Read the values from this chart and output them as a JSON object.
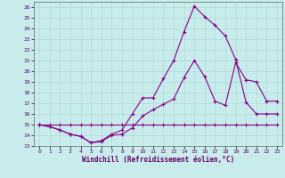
{
  "xlabel": "Windchill (Refroidissement éolien,°C)",
  "bg_color": "#c8ecec",
  "grid_color": "#b0d8d8",
  "line_color": "#880088",
  "xlim": [
    -0.5,
    23.5
  ],
  "ylim": [
    13,
    26.5
  ],
  "yticks": [
    13,
    14,
    15,
    16,
    17,
    18,
    19,
    20,
    21,
    22,
    23,
    24,
    25,
    26
  ],
  "xticks": [
    0,
    1,
    2,
    3,
    4,
    5,
    6,
    7,
    8,
    9,
    10,
    11,
    12,
    13,
    14,
    15,
    16,
    17,
    18,
    19,
    20,
    21,
    22,
    23
  ],
  "line1_x": [
    0,
    1,
    2,
    3,
    4,
    5,
    6,
    7,
    8,
    9,
    10,
    11,
    12,
    13,
    14,
    15,
    16,
    17,
    18,
    19,
    20,
    21,
    22,
    23
  ],
  "line1_y": [
    15.0,
    14.8,
    14.5,
    14.1,
    13.9,
    13.3,
    13.4,
    14.0,
    14.1,
    14.7,
    15.8,
    16.4,
    16.9,
    17.4,
    19.4,
    21.0,
    19.5,
    17.2,
    16.8,
    20.8,
    19.2,
    19.0,
    17.2,
    17.2
  ],
  "line2_x": [
    0,
    1,
    2,
    3,
    4,
    5,
    6,
    7,
    8,
    9,
    10,
    11,
    12,
    13,
    14,
    15,
    16,
    17,
    18,
    19,
    20,
    21,
    22,
    23
  ],
  "line2_y": [
    15.0,
    15.0,
    15.0,
    15.0,
    15.0,
    15.0,
    15.0,
    15.0,
    15.0,
    15.0,
    15.0,
    15.0,
    15.0,
    15.0,
    15.0,
    15.0,
    15.0,
    15.0,
    15.0,
    15.0,
    15.0,
    15.0,
    15.0,
    15.0
  ],
  "line3_x": [
    0,
    1,
    2,
    3,
    4,
    5,
    6,
    7,
    8,
    9,
    10,
    11,
    12,
    13,
    14,
    15,
    16,
    17,
    18,
    19,
    20,
    21,
    22,
    23
  ],
  "line3_y": [
    15.0,
    14.8,
    14.5,
    14.1,
    13.9,
    13.3,
    13.5,
    14.1,
    14.5,
    16.0,
    17.5,
    17.5,
    19.3,
    21.0,
    23.7,
    26.1,
    25.1,
    24.3,
    23.3,
    21.1,
    17.1,
    16.0,
    16.0,
    16.0
  ]
}
